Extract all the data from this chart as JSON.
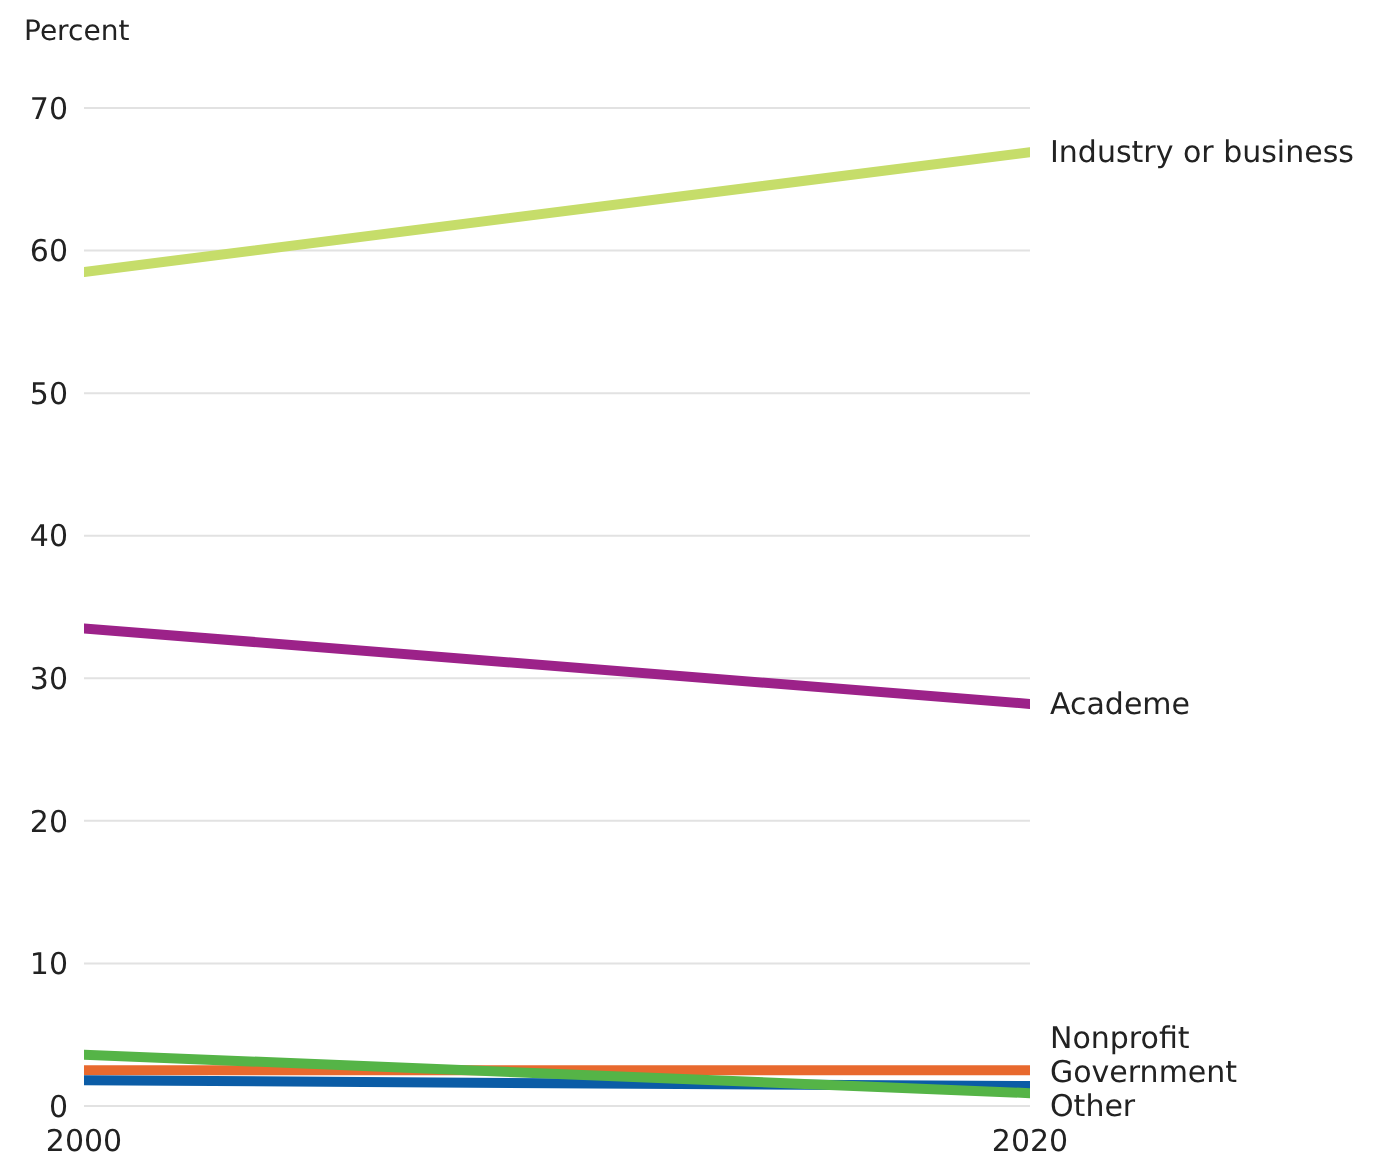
{
  "chart_data": {
    "type": "line",
    "ylabel": "Percent",
    "x": [
      2000,
      2020
    ],
    "xlim": [
      2000,
      2020
    ],
    "xticks": [
      2000,
      2020
    ],
    "ylim": [
      0,
      70
    ],
    "yticks": [
      0,
      10,
      20,
      30,
      40,
      50,
      60,
      70
    ],
    "grid": "y",
    "legend": false,
    "marker": "none",
    "line_style": "solid",
    "series": [
      {
        "name": "Industry or business",
        "color": "#c6dd6a",
        "values": [
          58.5,
          66.9
        ]
      },
      {
        "name": "Academe",
        "color": "#9c2289",
        "values": [
          33.5,
          28.2
        ]
      },
      {
        "name": "Nonprofit",
        "color": "#e8692e",
        "values": [
          2.5,
          2.5
        ]
      },
      {
        "name": "Government",
        "color": "#0b5ca6",
        "values": [
          1.8,
          1.4
        ]
      },
      {
        "name": "Other",
        "color": "#55b447",
        "values": [
          3.6,
          0.9
        ]
      }
    ]
  }
}
